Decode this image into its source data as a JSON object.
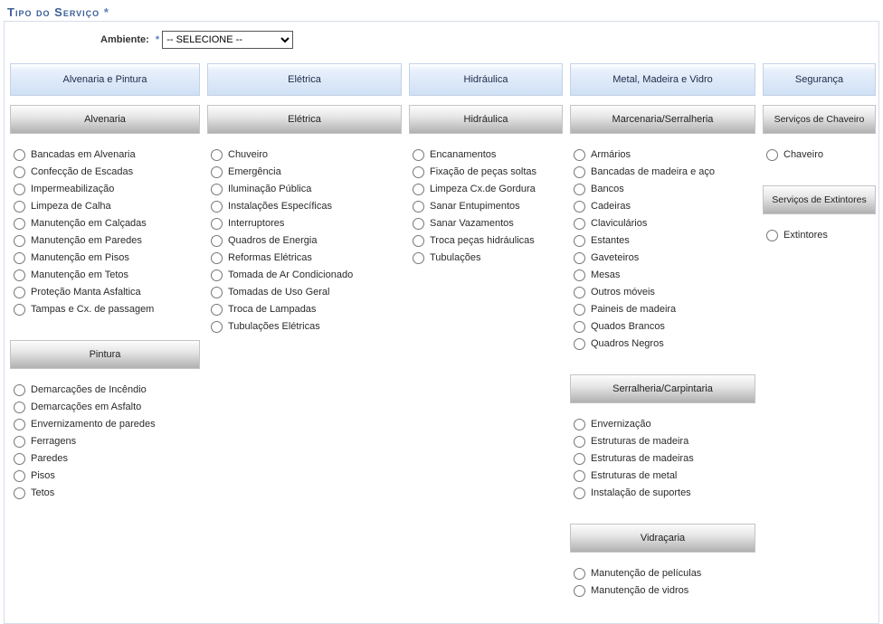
{
  "title": "Tipo do Serviço",
  "ambiente": {
    "label": "Ambiente:",
    "selected": "-- SELECIONE --"
  },
  "columns": [
    {
      "category": "Alvenaria e Pintura",
      "groups": [
        {
          "title": "Alvenaria",
          "items": [
            "Bancadas em Alvenaria",
            "Confecção de Escadas",
            "Impermeabilização",
            "Limpeza de Calha",
            "Manutenção em Calçadas",
            "Manutenção em Paredes",
            "Manutenção em Pisos",
            "Manutenção em Tetos",
            "Proteção Manta Asfaltica",
            "Tampas e Cx. de passagem"
          ]
        },
        {
          "title": "Pintura",
          "items": [
            "Demarcações de Incêndio",
            "Demarcações em Asfalto",
            "Envernizamento de paredes",
            "Ferragens",
            "Paredes",
            "Pisos",
            "Tetos"
          ]
        }
      ]
    },
    {
      "category": "Elétrica",
      "groups": [
        {
          "title": "Elétrica",
          "items": [
            "Chuveiro",
            "Emergência",
            "Iluminação Pública",
            "Instalações Específicas",
            "Interruptores",
            "Quadros de Energia",
            "Reformas Elétricas",
            "Tomada de Ar Condicionado",
            "Tomadas de Uso Geral",
            "Troca de Lampadas",
            "Tubulações Elétricas"
          ]
        }
      ]
    },
    {
      "category": "Hidráulica",
      "groups": [
        {
          "title": "Hidráulica",
          "items": [
            "Encanamentos",
            "Fixação de peças soltas",
            "Limpeza Cx.de Gordura",
            "Sanar Entupimentos",
            "Sanar Vazamentos",
            "Troca peças hidráulicas",
            "Tubulações"
          ]
        }
      ]
    },
    {
      "category": "Metal, Madeira e Vidro",
      "groups": [
        {
          "title": "Marcenaria/Serralheria",
          "items": [
            "Armários",
            "Bancadas de madeira e aço",
            "Bancos",
            "Cadeiras",
            "Claviculários",
            "Estantes",
            "Gaveteiros",
            "Mesas",
            "Outros móveis",
            "Paineis de madeira",
            "Quados Brancos",
            "Quadros Negros"
          ]
        },
        {
          "title": "Serralheria/Carpintaria",
          "items": [
            "Envernização",
            "Estruturas de madeira",
            "Estruturas de madeiras",
            "Estruturas de metal",
            "Instalação de suportes"
          ]
        },
        {
          "title": "Vidraçaria",
          "items": [
            "Manutenção de películas",
            "Manutenção de vidros"
          ]
        }
      ]
    },
    {
      "category": "Segurança",
      "groups": [
        {
          "title": "Serviços de Chaveiro",
          "items": [
            "Chaveiro"
          ]
        },
        {
          "title": "Serviços de Extintores",
          "items": [
            "Extintores"
          ]
        }
      ]
    }
  ]
}
